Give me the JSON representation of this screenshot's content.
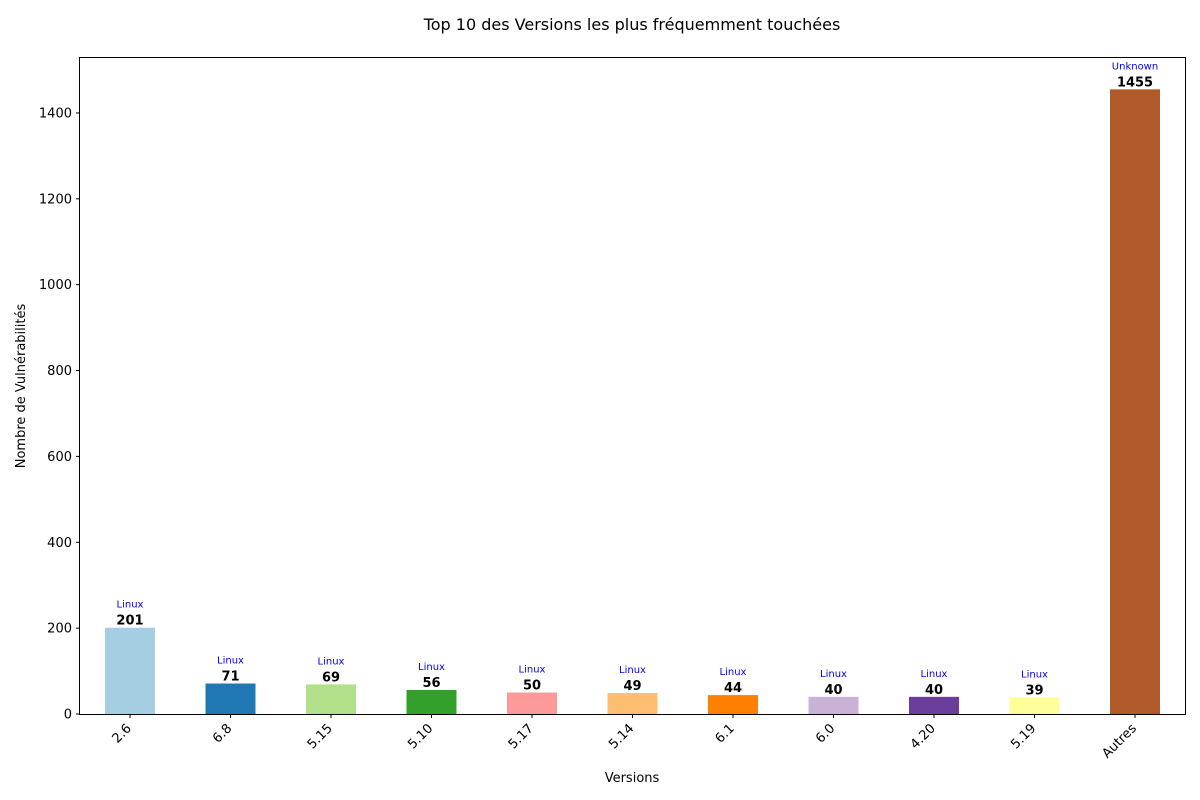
{
  "chart_data": {
    "type": "bar",
    "title": "Top 10 des Versions les plus fréquemment touchées",
    "xlabel": "Versions",
    "ylabel": "Nombre de Vulnérabilités",
    "categories": [
      "2.6",
      "6.8",
      "5.15",
      "5.10",
      "5.17",
      "5.14",
      "6.1",
      "6.0",
      "4.20",
      "5.19",
      "Autres"
    ],
    "values": [
      201,
      71,
      69,
      56,
      50,
      49,
      44,
      40,
      40,
      39,
      1455
    ],
    "bar_annotations": [
      "Linux",
      "Linux",
      "Linux",
      "Linux",
      "Linux",
      "Linux",
      "Linux",
      "Linux",
      "Linux",
      "Linux",
      "Unknown"
    ],
    "colors": [
      "#a6cee3",
      "#1f78b4",
      "#b2df8a",
      "#33a02c",
      "#fb9a99",
      "#fdbf6f",
      "#ff7f00",
      "#cab2d6",
      "#6a3d9a",
      "#ffff99",
      "#b15928"
    ],
    "annotation_color": "#0000ff",
    "yticks": [
      0,
      200,
      400,
      600,
      800,
      1000,
      1200,
      1400
    ],
    "ylim": [
      0,
      1528
    ],
    "grid": false,
    "legend": "none"
  }
}
